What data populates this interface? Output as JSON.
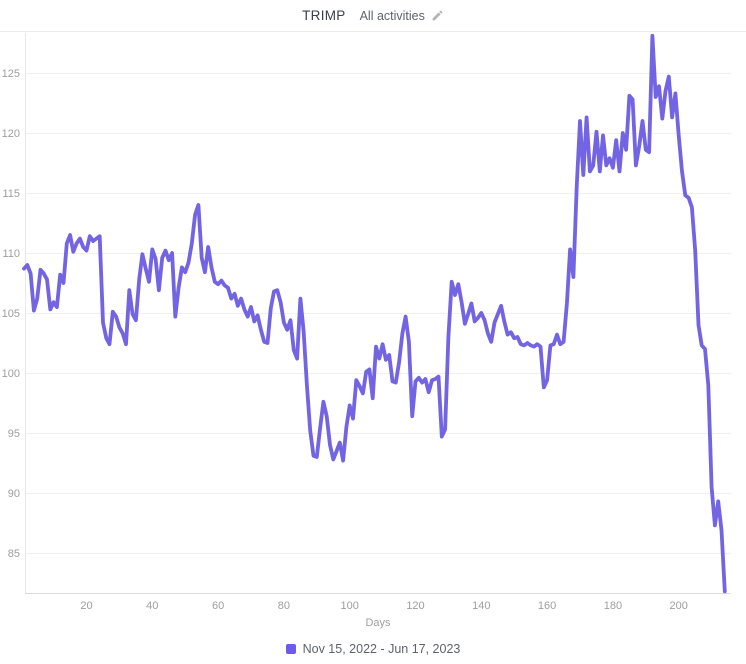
{
  "header": {
    "title": "TRIMP",
    "subtitle": "All activities"
  },
  "legend": {
    "label": "Nov 15, 2022 - Jun 17, 2023",
    "swatch_color": "#6e5ce6"
  },
  "chart_data": {
    "type": "line",
    "title": "TRIMP",
    "xlabel": "Days",
    "ylabel": "",
    "x_ticks": [
      20,
      40,
      60,
      80,
      100,
      120,
      140,
      160,
      180,
      200
    ],
    "y_ticks": [
      85,
      90,
      95,
      100,
      105,
      110,
      115,
      120,
      125
    ],
    "xlim": [
      1,
      215
    ],
    "ylim": [
      81.5,
      128.3
    ],
    "grid": true,
    "legend_position": "bottom",
    "line_color": "#7364e4",
    "series": [
      {
        "name": "Nov 15, 2022 - Jun 17, 2023",
        "x_start_day": 1,
        "values": [
          108.7,
          109.0,
          108.3,
          105.2,
          106.2,
          108.6,
          108.3,
          107.8,
          105.3,
          105.9,
          105.5,
          108.2,
          107.5,
          110.8,
          111.5,
          110.1,
          110.8,
          111.2,
          110.5,
          110.2,
          111.4,
          111.0,
          111.2,
          111.4,
          104.2,
          102.9,
          102.4,
          105.1,
          104.7,
          103.8,
          103.3,
          102.4,
          106.9,
          104.9,
          104.4,
          107.8,
          109.9,
          108.7,
          107.6,
          110.3,
          109.5,
          106.9,
          109.6,
          110.2,
          109.4,
          110.0,
          104.7,
          107.1,
          108.8,
          108.4,
          109.2,
          110.8,
          113.2,
          114.0,
          109.6,
          108.4,
          110.5,
          108.8,
          107.6,
          107.4,
          107.7,
          107.3,
          107.1,
          106.2,
          106.6,
          105.6,
          106.2,
          105.3,
          104.7,
          105.5,
          104.3,
          104.8,
          103.6,
          102.6,
          102.5,
          105.4,
          106.8,
          106.9,
          105.9,
          104.2,
          103.6,
          104.4,
          101.9,
          101.2,
          106.2,
          103.5,
          99.0,
          95.2,
          93.1,
          93.0,
          95.4,
          97.6,
          96.4,
          94.0,
          92.8,
          93.5,
          94.2,
          92.7,
          95.5,
          97.3,
          96.2,
          99.4,
          98.9,
          98.3,
          100.1,
          100.3,
          97.9,
          102.2,
          101.2,
          102.4,
          101.1,
          101.5,
          99.3,
          99.2,
          100.9,
          103.3,
          104.7,
          102.6,
          96.4,
          99.3,
          99.6,
          99.2,
          99.5,
          98.4,
          99.4,
          99.5,
          99.7,
          94.7,
          95.3,
          103.0,
          107.6,
          106.5,
          107.4,
          105.9,
          104.1,
          104.9,
          105.8,
          104.3,
          104.6,
          105.0,
          104.4,
          103.3,
          102.6,
          104.2,
          104.9,
          105.6,
          104.3,
          103.2,
          103.4,
          102.9,
          103.0,
          102.4,
          102.3,
          102.5,
          102.3,
          102.2,
          102.4,
          102.2,
          98.8,
          99.4,
          102.3,
          102.4,
          103.2,
          102.4,
          102.6,
          105.8,
          110.3,
          108.0,
          115.5,
          121.0,
          116.5,
          121.3,
          116.8,
          117.3,
          120.1,
          116.8,
          119.8,
          117.3,
          117.9,
          117.1,
          119.4,
          116.8,
          120.0,
          118.6,
          123.1,
          122.8,
          117.3,
          118.9,
          121.0,
          118.6,
          118.4,
          128.1,
          123.0,
          123.9,
          121.2,
          123.5,
          124.7,
          121.3,
          123.3,
          119.8,
          116.8,
          114.8,
          114.6,
          113.8,
          110.2,
          104.0,
          102.3,
          102.0,
          99.0,
          90.5,
          87.3,
          89.3,
          86.9,
          81.8
        ]
      }
    ]
  },
  "colors": {
    "grid": "#f0f0f0",
    "axis": "#dcdcdc",
    "tick_text": "#9e9e9e",
    "background": "#ffffff"
  }
}
